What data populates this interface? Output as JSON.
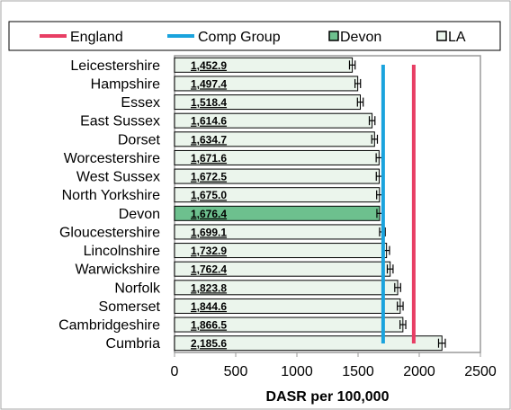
{
  "chart_data": {
    "type": "bar",
    "orientation": "horizontal",
    "categories": [
      "Leicestershire",
      "Hampshire",
      "Essex",
      "East Sussex",
      "Dorset",
      "Worcestershire",
      "West Sussex",
      "North Yorkshire",
      "Devon",
      "Gloucestershire",
      "Lincolnshire",
      "Warwickshire",
      "Norfolk",
      "Somerset",
      "Cambridgeshire",
      "Cumbria"
    ],
    "values": [
      1452.9,
      1497.4,
      1518.4,
      1614.6,
      1634.7,
      1671.6,
      1672.5,
      1675.0,
      1676.4,
      1699.1,
      1732.9,
      1762.4,
      1823.8,
      1844.6,
      1866.5,
      2185.6
    ],
    "value_labels": [
      "1,452.9",
      "1,497.4",
      "1,518.4",
      "1,614.6",
      "1,634.7",
      "1,671.6",
      "1,672.5",
      "1,675.0",
      "1,676.4",
      "1,699.1",
      "1,732.9",
      "1,762.4",
      "1,823.8",
      "1,844.6",
      "1,866.5",
      "2,185.6"
    ],
    "error_bars": [
      [
        1430,
        1476
      ],
      [
        1475,
        1520
      ],
      [
        1495,
        1542
      ],
      [
        1592,
        1638
      ],
      [
        1612,
        1658
      ],
      [
        1648,
        1695
      ],
      [
        1649,
        1696
      ],
      [
        1652,
        1698
      ],
      [
        1654,
        1699
      ],
      [
        1676,
        1722
      ],
      [
        1709,
        1757
      ],
      [
        1739,
        1786
      ],
      [
        1800,
        1848
      ],
      [
        1821,
        1868
      ],
      [
        1843,
        1890
      ],
      [
        2158,
        2213
      ]
    ],
    "highlight_category": "Devon",
    "reference_lines": [
      {
        "name": "England",
        "value": 1955,
        "color": "#e83e64"
      },
      {
        "name": "Comp Group",
        "value": 1705,
        "color": "#1aa3dd"
      }
    ],
    "legend": [
      {
        "name": "England",
        "kind": "line",
        "color": "#e83e64"
      },
      {
        "name": "Comp Group",
        "kind": "line",
        "color": "#1aa3dd"
      },
      {
        "name": "Devon",
        "kind": "box",
        "fill": "#6dc08e"
      },
      {
        "name": "LA",
        "kind": "box",
        "fill": "#ebf5ec"
      }
    ],
    "xlim": [
      0,
      2500
    ],
    "xticks": [
      0,
      500,
      1000,
      1500,
      2000,
      2500
    ],
    "xlabel": "DASR per 100,000",
    "ylabel": "",
    "title": "",
    "grid": false,
    "legend_position": "top",
    "colors": {
      "la_fill": "#ebf5ec",
      "devon_fill": "#6dc08e",
      "bar_stroke": "#000000",
      "plot_border": "#9a9a9a"
    }
  }
}
